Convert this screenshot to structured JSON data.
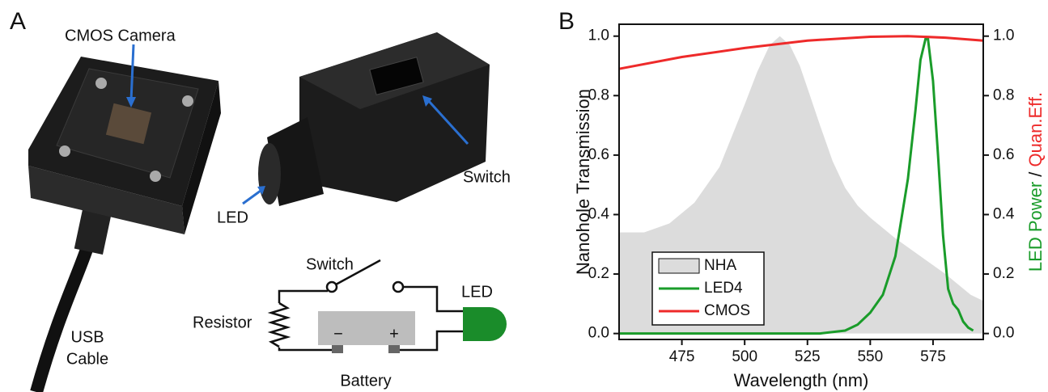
{
  "panel_a": {
    "label": "A",
    "photo_labels": {
      "cmos": "CMOS Camera",
      "switch": "Switch",
      "led": "LED",
      "usb": [
        "USB",
        "Cable"
      ]
    },
    "circuit": {
      "switch": "Switch",
      "resistor": "Resistor",
      "led": "LED",
      "battery": "Battery",
      "minus": "−",
      "plus": "+"
    }
  },
  "chart_data": {
    "type": "line",
    "panel_label": "B",
    "xlabel": "Wavelength (nm)",
    "ylabel": "Nanohole Transmission",
    "y2label": [
      {
        "text": "LED Power",
        "color": "#1a9c2a"
      },
      {
        "text": " / ",
        "color": "#111111"
      },
      {
        "text": "Quan.Eff.",
        "color": "#ee2a2a"
      }
    ],
    "xlim": [
      450,
      595
    ],
    "xticks": [
      475,
      500,
      525,
      550,
      575
    ],
    "ylim": [
      -0.02,
      1.04
    ],
    "yticks": [
      {
        "value": 0,
        "label": "0.0"
      },
      0.2,
      0.4,
      0.6,
      0.8,
      {
        "value": 1,
        "label": "1.0"
      }
    ],
    "y2lim": [
      -0.02,
      1.04
    ],
    "y2ticks": [
      {
        "value": 0,
        "label": "0.0"
      },
      0.2,
      0.4,
      0.6,
      0.8,
      {
        "value": 1,
        "label": "1.0"
      }
    ],
    "legend": "lower left",
    "series": [
      {
        "name": "NHA",
        "color": "#dcdcdc",
        "style": "area",
        "axis": "y",
        "x": [
          450,
          460,
          470,
          480,
          490,
          500,
          505,
          510,
          514,
          518,
          522,
          526,
          530,
          535,
          540,
          545,
          550,
          560,
          570,
          580,
          590,
          595
        ],
        "values": [
          0.34,
          0.34,
          0.37,
          0.44,
          0.56,
          0.77,
          0.88,
          0.97,
          1.0,
          0.97,
          0.9,
          0.8,
          0.7,
          0.58,
          0.49,
          0.43,
          0.39,
          0.32,
          0.26,
          0.2,
          0.13,
          0.11
        ]
      },
      {
        "name": "LED4",
        "color": "#1a9c2a",
        "style": "line",
        "axis": "y2",
        "x": [
          450,
          530,
          540,
          545,
          550,
          555,
          560,
          565,
          568,
          570,
          572,
          573,
          575,
          577,
          579,
          581,
          583,
          585,
          587,
          589,
          591
        ],
        "values": [
          0.0,
          0.0,
          0.01,
          0.03,
          0.07,
          0.13,
          0.26,
          0.52,
          0.75,
          0.92,
          0.99,
          0.99,
          0.85,
          0.6,
          0.33,
          0.15,
          0.1,
          0.08,
          0.04,
          0.02,
          0.01
        ]
      },
      {
        "name": "CMOS",
        "color": "#ee2a2a",
        "style": "line",
        "axis": "y2",
        "x": [
          450,
          475,
          500,
          525,
          550,
          565,
          580,
          595
        ],
        "values": [
          0.89,
          0.93,
          0.96,
          0.985,
          0.998,
          1.0,
          0.995,
          0.985
        ]
      }
    ]
  }
}
